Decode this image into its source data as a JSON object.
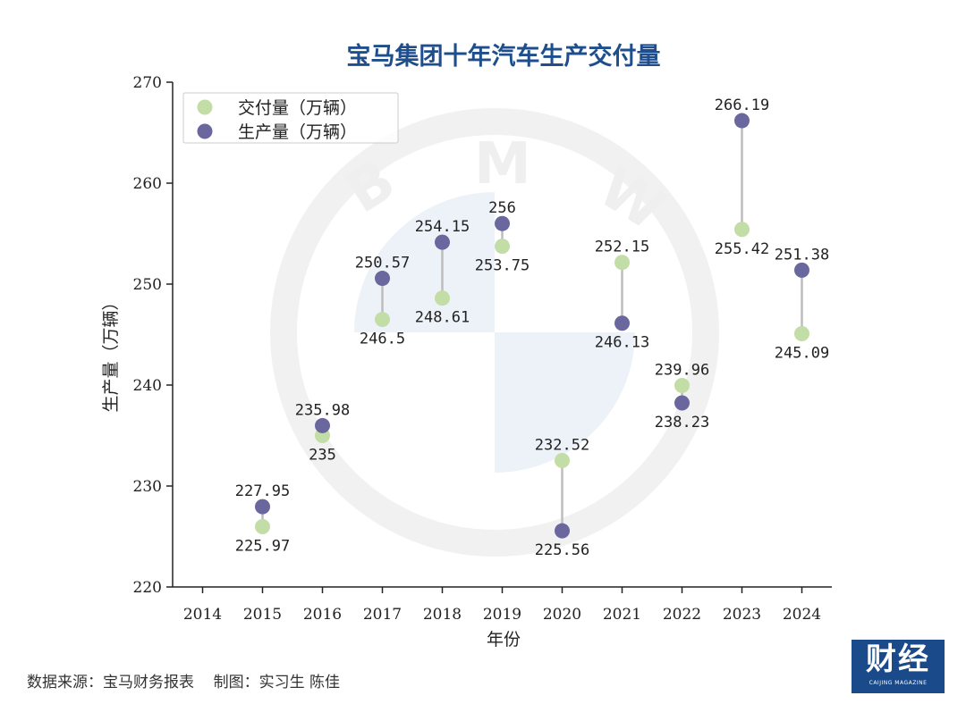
{
  "chart_data": {
    "type": "scatter",
    "title": "宝马集团十年汽车生产交付量",
    "xlabel": "年份",
    "ylabel": "生产量（万辆）",
    "xlim": [
      2013.5,
      2024.5
    ],
    "ylim": [
      220,
      270
    ],
    "x_ticks": [
      2014,
      2015,
      2016,
      2017,
      2018,
      2019,
      2020,
      2021,
      2022,
      2023,
      2024
    ],
    "y_ticks": [
      220,
      230,
      240,
      250,
      260,
      270
    ],
    "grid": false,
    "legend_position": "top-left",
    "x": [
      2015,
      2016,
      2017,
      2018,
      2019,
      2020,
      2021,
      2022,
      2023,
      2024
    ],
    "series": [
      {
        "name": "交付量（万辆）",
        "color": "#c3dda6",
        "values": [
          225.97,
          235,
          246.5,
          248.61,
          253.75,
          232.52,
          252.15,
          239.96,
          255.42,
          245.09
        ],
        "labels": [
          "225.97",
          "235",
          "246.5",
          "248.61",
          "253.75",
          "232.52",
          "252.15",
          "239.96",
          "255.42",
          "245.09"
        ]
      },
      {
        "name": "生产量（万辆）",
        "color": "#6a679e",
        "values": [
          227.95,
          235.98,
          250.57,
          254.15,
          256,
          225.56,
          246.13,
          238.23,
          266.19,
          251.38
        ],
        "labels": [
          "227.95",
          "235.98",
          "250.57",
          "254.15",
          "256",
          "225.56",
          "246.13",
          "238.23",
          "266.19",
          "251.38"
        ]
      }
    ],
    "connector_color": "#bdbdbd",
    "watermark": "BMW"
  },
  "footer": {
    "source": "数据来源：宝马财务报表    制图：实习生 陈佳"
  },
  "logo": {
    "main": "财经",
    "sub": "CAIJING MAGAZINE"
  }
}
